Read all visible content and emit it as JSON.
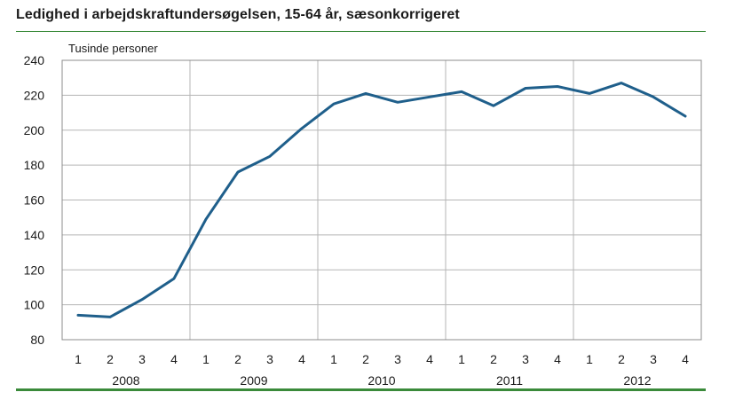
{
  "chart_data": {
    "type": "line",
    "title": "Ledighed i arbejdskraftundersøgelsen, 15-64 år, sæsonkorrigeret",
    "ylabel": "Tusinde personer",
    "xlabel": "",
    "ylim": [
      80,
      240
    ],
    "yticks": [
      80,
      100,
      120,
      140,
      160,
      180,
      200,
      220,
      240
    ],
    "quarters": [
      "1",
      "2",
      "3",
      "4",
      "1",
      "2",
      "3",
      "4",
      "1",
      "2",
      "3",
      "4",
      "1",
      "2",
      "3",
      "4",
      "1",
      "2",
      "3",
      "4"
    ],
    "years": [
      "2008",
      "2009",
      "2010",
      "2011",
      "2012"
    ],
    "grid": true,
    "line_color": "#1f5f8b",
    "series": [
      {
        "values": [
          94,
          93,
          103,
          115,
          149,
          176,
          185,
          201,
          215,
          221,
          216,
          219,
          222,
          214,
          224,
          225,
          221,
          227,
          219,
          208
        ]
      }
    ]
  }
}
